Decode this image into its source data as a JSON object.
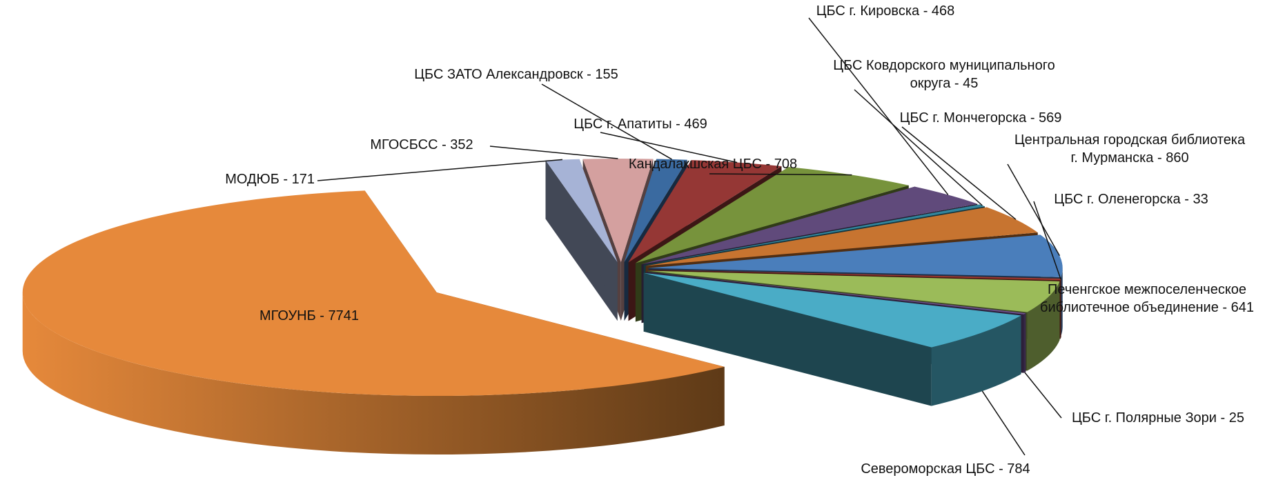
{
  "chart_data": {
    "type": "pie3d",
    "value_labels": [
      "МГОУНБ - 7741",
      "МОДЮБ - 171",
      "МГОСБСС - 352",
      "ЦБС ЗАТО Александровск - 155",
      "ЦБС г. Апатиты - 469",
      "Кандалакшская ЦБС - 708",
      "ЦБС г. Кировска - 468",
      "ЦБС Ковдорского муниципального округа - 45",
      "ЦБС г. Мончегорска - 569",
      "Центральная городская библиотека г. Мурманска - 860",
      "ЦБС г. Оленегорска - 33",
      "Печенгское межпоселенческое библиотечное объединение - 641",
      "ЦБС г. Полярные Зори - 25",
      "Североморская ЦБС - 784"
    ],
    "values": [
      7741,
      171,
      352,
      155,
      469,
      708,
      468,
      45,
      569,
      860,
      33,
      641,
      25,
      784
    ],
    "colors": [
      "#e6893b",
      "#a6b3d6",
      "#d4a09f",
      "#3a6aa0",
      "#953735",
      "#77933c",
      "#604a7b",
      "#31859c",
      "#c77430",
      "#4a7ebb",
      "#a0382f",
      "#9bbb59",
      "#6e4f8f",
      "#4aacc6"
    ]
  }
}
